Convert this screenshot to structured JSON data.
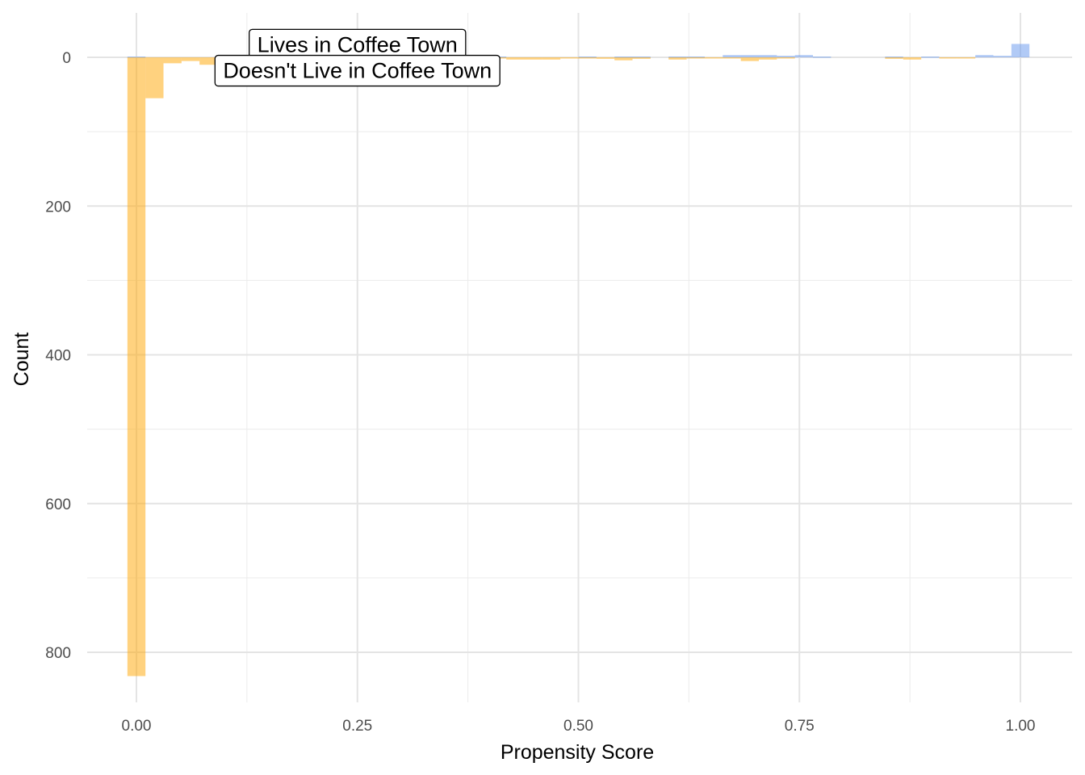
{
  "chart_data": {
    "type": "bar",
    "title": "",
    "xlabel": "Propensity Score",
    "ylabel": "Count",
    "xlim": [
      -0.03,
      1.03
    ],
    "ylim": [
      -40,
      870
    ],
    "y_reversed": true,
    "grid": true,
    "legend": "none",
    "x_ticks": [
      {
        "value": 0.0,
        "label": "0.00"
      },
      {
        "value": 0.25,
        "label": "0.25"
      },
      {
        "value": 0.5,
        "label": "0.50"
      },
      {
        "value": 0.75,
        "label": "0.75"
      },
      {
        "value": 1.0,
        "label": "1.00"
      }
    ],
    "y_ticks": [
      {
        "value": 0,
        "label": "0"
      },
      {
        "value": 200,
        "label": "200"
      },
      {
        "value": 400,
        "label": "400"
      },
      {
        "value": 600,
        "label": "600"
      },
      {
        "value": 800,
        "label": "800"
      }
    ],
    "bin_width": 0.0204,
    "bin_centers": [
      0.0,
      0.0204,
      0.0408,
      0.0612,
      0.0816,
      0.102,
      0.1224,
      0.1429,
      0.1633,
      0.1837,
      0.2041,
      0.2245,
      0.2449,
      0.2653,
      0.2857,
      0.3061,
      0.3265,
      0.3469,
      0.3673,
      0.3878,
      0.4082,
      0.4286,
      0.449,
      0.4694,
      0.4898,
      0.5102,
      0.5306,
      0.551,
      0.5714,
      0.5918,
      0.6122,
      0.6327,
      0.6531,
      0.6735,
      0.6939,
      0.7143,
      0.7347,
      0.7551,
      0.7755,
      0.7959,
      0.8163,
      0.8367,
      0.8571,
      0.8776,
      0.898,
      0.9184,
      0.9388,
      0.9592,
      0.9796,
      1.0
    ],
    "series": [
      {
        "name": "Lives in Coffee Town",
        "color": "#6495ED",
        "direction": "up",
        "values": [
          1,
          0,
          0,
          0,
          0,
          1,
          1,
          1,
          1,
          1,
          2,
          1,
          0,
          1,
          1,
          1,
          1,
          1,
          2,
          1,
          1,
          0,
          0,
          0,
          0,
          1,
          0,
          1,
          1,
          0,
          1,
          1,
          0,
          3,
          3,
          3,
          2,
          3,
          1,
          0,
          0,
          0,
          1,
          0,
          1,
          0,
          0,
          3,
          2,
          18
        ]
      },
      {
        "name": "Doesn't Live in Coffee Town",
        "color": "#FFA500",
        "direction": "down",
        "values": [
          832,
          55,
          8,
          5,
          10,
          4,
          3,
          6,
          3,
          1,
          3,
          2,
          3,
          1,
          0,
          2,
          1,
          3,
          2,
          1,
          1,
          3,
          3,
          3,
          1,
          1,
          2,
          4,
          2,
          0,
          3,
          1,
          1,
          1,
          5,
          3,
          1,
          0,
          0,
          0,
          0,
          0,
          2,
          3,
          0,
          1,
          1,
          0,
          0,
          0
        ]
      }
    ],
    "annotations": [
      {
        "text": "Lives in Coffee Town",
        "x": 0.25,
        "y": -17
      },
      {
        "text": "Doesn't Live in Coffee Town",
        "x": 0.25,
        "y": 18
      }
    ]
  }
}
